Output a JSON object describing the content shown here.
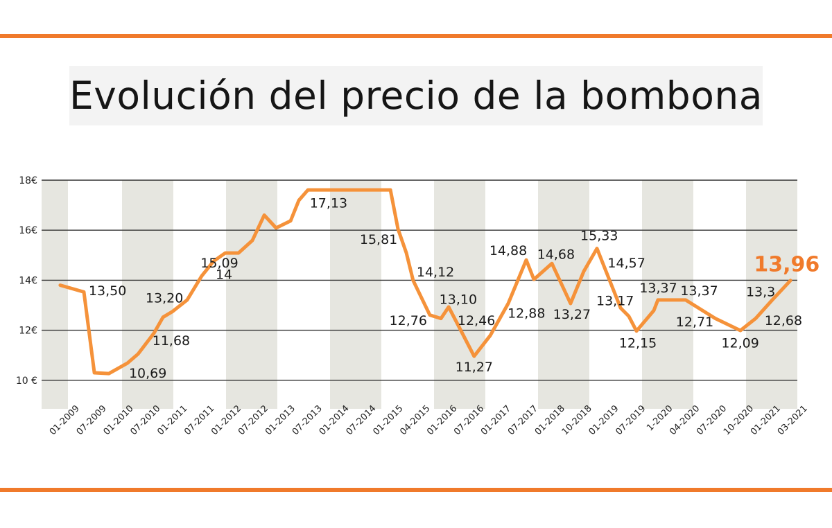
{
  "title": "Evolución del precio de la bombona",
  "colors": {
    "accent": "#f07a2b",
    "line": "#f5923a",
    "band": "#e6e6e0",
    "grid": "#333333"
  },
  "chart_data": {
    "type": "line",
    "title": "Evolución del precio de la bombona",
    "xlabel": "",
    "ylabel": "",
    "categories": [
      "01-2009",
      "07-2009",
      "01-2010",
      "07-2010",
      "01-2011",
      "07-2011",
      "01-2012",
      "07-2012",
      "01-2013",
      "07-2013",
      "01-2014",
      "07-2014",
      "01-2015",
      "04-2015",
      "01-2016",
      "07-2016",
      "01-2017",
      "07-2017",
      "01-2018",
      "10-2018",
      "01-2019",
      "07-2019",
      "1-2020",
      "04-2020",
      "07-2020",
      "10-2020",
      "01-2021",
      "03-2021"
    ],
    "yticks": [
      {
        "value": 18,
        "label": "18€"
      },
      {
        "value": 16,
        "label": "16€"
      },
      {
        "value": 14,
        "label": "14€"
      },
      {
        "value": 12,
        "label": "12€"
      },
      {
        "value": 10,
        "label": "10 €"
      }
    ],
    "ylim": [
      9.1,
      18
    ],
    "grid": "horizontal",
    "alternating_bands": true,
    "series": [
      {
        "points": [
          [
            -0.4,
            13.8
          ],
          [
            0.64,
            13.53
          ],
          [
            1.1,
            10.3
          ],
          [
            1.74,
            10.27
          ],
          [
            2.56,
            10.69
          ],
          [
            3.02,
            11.05
          ],
          [
            3.72,
            11.88
          ],
          [
            4.12,
            12.52
          ],
          [
            4.54,
            12.75
          ],
          [
            5.18,
            13.21
          ],
          [
            5.82,
            14.17
          ],
          [
            6.34,
            14.76
          ],
          [
            6.86,
            15.09
          ],
          [
            7.44,
            15.09
          ],
          [
            8.05,
            15.59
          ],
          [
            8.57,
            16.6
          ],
          [
            9.09,
            16.09
          ],
          [
            9.73,
            16.37
          ],
          [
            10.09,
            17.19
          ],
          [
            10.49,
            17.61
          ],
          [
            14.12,
            17.61
          ],
          [
            14.45,
            16.05
          ],
          [
            14.82,
            15.09
          ],
          [
            15.12,
            13.99
          ],
          [
            15.85,
            12.61
          ],
          [
            16.34,
            12.47
          ],
          [
            16.68,
            12.93
          ],
          [
            17.23,
            11.97
          ],
          [
            17.8,
            10.96
          ],
          [
            18.51,
            11.79
          ],
          [
            19.3,
            13.07
          ],
          [
            20.09,
            14.81
          ],
          [
            20.43,
            14.03
          ],
          [
            21.22,
            14.67
          ],
          [
            22.04,
            13.07
          ],
          [
            22.62,
            14.35
          ],
          [
            23.2,
            15.27
          ],
          [
            24.24,
            12.89
          ],
          [
            24.6,
            12.56
          ],
          [
            24.94,
            11.97
          ],
          [
            25.7,
            12.79
          ],
          [
            25.88,
            13.21
          ],
          [
            27.1,
            13.21
          ],
          [
            28.41,
            12.47
          ],
          [
            29.51,
            11.99
          ],
          [
            30.18,
            12.47
          ],
          [
            30.91,
            13.21
          ],
          [
            31.71,
            13.99
          ]
        ]
      }
    ],
    "annotations": [
      {
        "text": "13,50",
        "x": 1.68,
        "y": 13.6
      },
      {
        "text": "10,69",
        "x": 3.45,
        "y": 10.3
      },
      {
        "text": "11,68",
        "x": 4.48,
        "y": 11.6
      },
      {
        "text": "13,20",
        "x": 4.18,
        "y": 13.3
      },
      {
        "text": "14",
        "x": 6.8,
        "y": 14.25
      },
      {
        "text": "15,09",
        "x": 6.6,
        "y": 14.7
      },
      {
        "text": "17,13",
        "x": 11.4,
        "y": 17.1
      },
      {
        "text": "15,81",
        "x": 13.6,
        "y": 15.65
      },
      {
        "text": "12,76",
        "x": 14.9,
        "y": 12.4
      },
      {
        "text": "14,12",
        "x": 16.1,
        "y": 14.35
      },
      {
        "text": "13,10",
        "x": 17.1,
        "y": 13.25
      },
      {
        "text": "12,46",
        "x": 17.9,
        "y": 12.4
      },
      {
        "text": "11,27",
        "x": 17.8,
        "y": 10.55
      },
      {
        "text": "14,88",
        "x": 19.3,
        "y": 15.2
      },
      {
        "text": "12,88",
        "x": 20.1,
        "y": 12.7
      },
      {
        "text": "14,68",
        "x": 21.4,
        "y": 15.05
      },
      {
        "text": "13,27",
        "x": 22.1,
        "y": 12.65
      },
      {
        "text": "15,33",
        "x": 23.3,
        "y": 15.8
      },
      {
        "text": "14,57",
        "x": 24.5,
        "y": 14.7
      },
      {
        "text": "13,17",
        "x": 24.0,
        "y": 13.2
      },
      {
        "text": "12,15",
        "x": 25.0,
        "y": 11.5
      },
      {
        "text": "13,37",
        "x": 25.9,
        "y": 13.7
      },
      {
        "text": "13,37",
        "x": 27.7,
        "y": 13.6
      },
      {
        "text": "12,71",
        "x": 27.5,
        "y": 12.35
      },
      {
        "text": "12,09",
        "x": 29.5,
        "y": 11.5
      },
      {
        "text": "13,3",
        "x": 30.4,
        "y": 13.55
      },
      {
        "text": "12,68",
        "x": 31.4,
        "y": 12.4
      },
      {
        "text": "13,96",
        "x": 31.55,
        "y": 14.55,
        "highlight": true
      }
    ]
  }
}
